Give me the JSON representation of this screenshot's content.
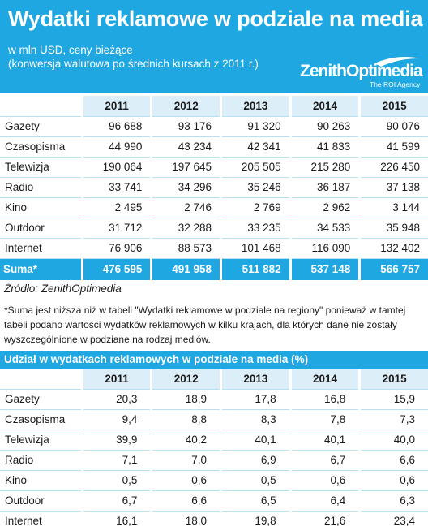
{
  "header": {
    "title": "Wydatki reklamowe w podziale na media",
    "subtitle1": "w mln USD, ceny bieżące",
    "subtitle2": "(konwersja walutowa po średnich kursach z 2011 r.)",
    "logo_text": "ZenithOptimedia",
    "logo_tagline": "The ROI Agency"
  },
  "table1": {
    "years": [
      "2011",
      "2012",
      "2013",
      "2014",
      "2015"
    ],
    "rows": [
      {
        "label": "Gazety",
        "values": [
          "96 688",
          "93 176",
          "91 320",
          "90 263",
          "90 076"
        ]
      },
      {
        "label": "Czasopisma",
        "values": [
          "44 990",
          "43 234",
          "42 341",
          "41 833",
          "41 599"
        ]
      },
      {
        "label": "Telewizja",
        "values": [
          "190 064",
          "197 645",
          "205 505",
          "215 280",
          "226 450"
        ]
      },
      {
        "label": "Radio",
        "values": [
          "33 741",
          "34 296",
          "35 246",
          "36 187",
          "37 138"
        ]
      },
      {
        "label": "Kino",
        "values": [
          "2 495",
          "2 746",
          "2 769",
          "2 962",
          "3 144"
        ]
      },
      {
        "label": "Outdoor",
        "values": [
          "31 712",
          "32 288",
          "33 235",
          "34 533",
          "35 948"
        ]
      },
      {
        "label": "Internet",
        "values": [
          "76 906",
          "88 573",
          "101 468",
          "116 090",
          "132 402"
        ]
      }
    ],
    "sum": {
      "label": "Suma*",
      "values": [
        "476 595",
        "491 958",
        "511 882",
        "537 148",
        "566 757"
      ]
    }
  },
  "source": "Źródło: ZenithOptimedia",
  "note": "*Suma jest niższa niż w tabeli \"Wydatki reklamowe w podziale na regiony\" ponieważ w tamtej tabeli podano wartości wydatków reklamowych w kilku krajach, dla których dane nie zostały wyszczególnione w podziane na rodzaj mediów.",
  "table2": {
    "title": "Udział w wydatkach reklamowych w podziale na media (%)",
    "years": [
      "2011",
      "2012",
      "2013",
      "2014",
      "2015"
    ],
    "rows": [
      {
        "label": "Gazety",
        "values": [
          "20,3",
          "18,9",
          "17,8",
          "16,8",
          "15,9"
        ]
      },
      {
        "label": "Czasopisma",
        "values": [
          "9,4",
          "8,8",
          "8,3",
          "7,8",
          "7,3"
        ]
      },
      {
        "label": "Telewizja",
        "values": [
          "39,9",
          "40,2",
          "40,1",
          "40,1",
          "40,0"
        ]
      },
      {
        "label": "Radio",
        "values": [
          "7,1",
          "7,0",
          "6,9",
          "6,7",
          "6,6"
        ]
      },
      {
        "label": "Kino",
        "values": [
          "0,5",
          "0,6",
          "0,5",
          "0,6",
          "0,6"
        ]
      },
      {
        "label": "Outdoor",
        "values": [
          "6,7",
          "6,6",
          "6,5",
          "6,4",
          "6,3"
        ]
      },
      {
        "label": "Internet",
        "values": [
          "16,1",
          "18,0",
          "19,8",
          "21,6",
          "23,4"
        ]
      }
    ]
  },
  "colors": {
    "accent": "#1ea7e1",
    "header_cell": "#dceef8",
    "rule": "#b9dff2"
  }
}
